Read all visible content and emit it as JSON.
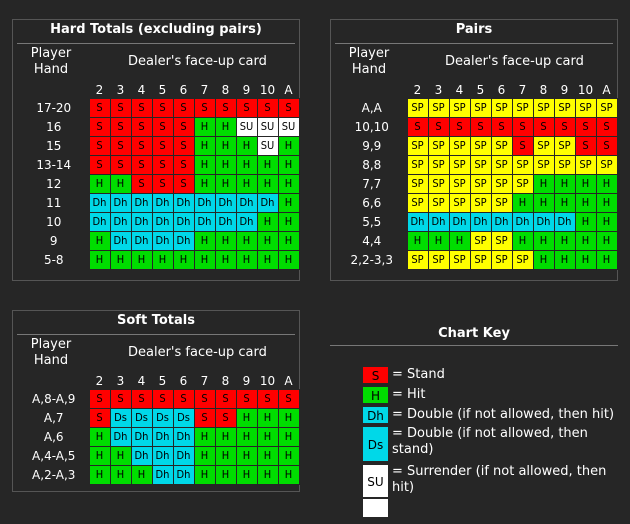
{
  "hard": {
    "title": "Hard Totals (excluding pairs)",
    "player_hand": "Player\nHand",
    "dealer": "Dealer's face-up card",
    "columns": [
      "2",
      "3",
      "4",
      "5",
      "6",
      "7",
      "8",
      "9",
      "10",
      "A"
    ],
    "rows": [
      {
        "label": "17-20",
        "cells": [
          "S",
          "S",
          "S",
          "S",
          "S",
          "S",
          "S",
          "S",
          "S",
          "S"
        ]
      },
      {
        "label": "16",
        "cells": [
          "S",
          "S",
          "S",
          "S",
          "S",
          "H",
          "H",
          "SU",
          "SU",
          "SU"
        ]
      },
      {
        "label": "15",
        "cells": [
          "S",
          "S",
          "S",
          "S",
          "S",
          "H",
          "H",
          "H",
          "SU",
          "H"
        ]
      },
      {
        "label": "13-14",
        "cells": [
          "S",
          "S",
          "S",
          "S",
          "S",
          "H",
          "H",
          "H",
          "H",
          "H"
        ]
      },
      {
        "label": "12",
        "cells": [
          "H",
          "H",
          "S",
          "S",
          "S",
          "H",
          "H",
          "H",
          "H",
          "H"
        ]
      },
      {
        "label": "11",
        "cells": [
          "Dh",
          "Dh",
          "Dh",
          "Dh",
          "Dh",
          "Dh",
          "Dh",
          "Dh",
          "Dh",
          "H"
        ]
      },
      {
        "label": "10",
        "cells": [
          "Dh",
          "Dh",
          "Dh",
          "Dh",
          "Dh",
          "Dh",
          "Dh",
          "Dh",
          "H",
          "H"
        ]
      },
      {
        "label": "9",
        "cells": [
          "H",
          "Dh",
          "Dh",
          "Dh",
          "Dh",
          "H",
          "H",
          "H",
          "H",
          "H"
        ]
      },
      {
        "label": "5-8",
        "cells": [
          "H",
          "H",
          "H",
          "H",
          "H",
          "H",
          "H",
          "H",
          "H",
          "H"
        ]
      }
    ]
  },
  "pairs": {
    "title": "Pairs",
    "player_hand": "Player\nHand",
    "dealer": "Dealer's face-up card",
    "columns": [
      "2",
      "3",
      "4",
      "5",
      "6",
      "7",
      "8",
      "9",
      "10",
      "A"
    ],
    "rows": [
      {
        "label": "A,A",
        "cells": [
          "SP",
          "SP",
          "SP",
          "SP",
          "SP",
          "SP",
          "SP",
          "SP",
          "SP",
          "SP"
        ]
      },
      {
        "label": "10,10",
        "cells": [
          "S",
          "S",
          "S",
          "S",
          "S",
          "S",
          "S",
          "S",
          "S",
          "S"
        ]
      },
      {
        "label": "9,9",
        "cells": [
          "SP",
          "SP",
          "SP",
          "SP",
          "SP",
          "S",
          "SP",
          "SP",
          "S",
          "S"
        ]
      },
      {
        "label": "8,8",
        "cells": [
          "SP",
          "SP",
          "SP",
          "SP",
          "SP",
          "SP",
          "SP",
          "SP",
          "SP",
          "SP"
        ]
      },
      {
        "label": "7,7",
        "cells": [
          "SP",
          "SP",
          "SP",
          "SP",
          "SP",
          "SP",
          "H",
          "H",
          "H",
          "H"
        ]
      },
      {
        "label": "6,6",
        "cells": [
          "SP",
          "SP",
          "SP",
          "SP",
          "SP",
          "H",
          "H",
          "H",
          "H",
          "H"
        ]
      },
      {
        "label": "5,5",
        "cells": [
          "Dh",
          "Dh",
          "Dh",
          "Dh",
          "Dh",
          "Dh",
          "Dh",
          "Dh",
          "H",
          "H"
        ]
      },
      {
        "label": "4,4",
        "cells": [
          "H",
          "H",
          "H",
          "SP",
          "SP",
          "H",
          "H",
          "H",
          "H",
          "H"
        ]
      },
      {
        "label": "2,2-3,3",
        "cells": [
          "SP",
          "SP",
          "SP",
          "SP",
          "SP",
          "SP",
          "H",
          "H",
          "H",
          "H"
        ]
      }
    ]
  },
  "soft": {
    "title": "Soft Totals",
    "player_hand": "Player\nHand",
    "dealer": "Dealer's face-up card",
    "columns": [
      "2",
      "3",
      "4",
      "5",
      "6",
      "7",
      "8",
      "9",
      "10",
      "A"
    ],
    "rows": [
      {
        "label": "A,8-A,9",
        "cells": [
          "S",
          "S",
          "S",
          "S",
          "S",
          "S",
          "S",
          "S",
          "S",
          "S"
        ]
      },
      {
        "label": "A,7",
        "cells": [
          "S",
          "Ds",
          "Ds",
          "Ds",
          "Ds",
          "S",
          "S",
          "H",
          "H",
          "H"
        ]
      },
      {
        "label": "A,6",
        "cells": [
          "H",
          "Dh",
          "Dh",
          "Dh",
          "Dh",
          "H",
          "H",
          "H",
          "H",
          "H"
        ]
      },
      {
        "label": "A,4-A,5",
        "cells": [
          "H",
          "H",
          "Dh",
          "Dh",
          "Dh",
          "H",
          "H",
          "H",
          "H",
          "H"
        ]
      },
      {
        "label": "A,2-A,3",
        "cells": [
          "H",
          "H",
          "H",
          "Dh",
          "Dh",
          "H",
          "H",
          "H",
          "H",
          "H"
        ]
      }
    ]
  },
  "key": {
    "title": "Chart Key",
    "items": [
      {
        "code": "S",
        "swatch": "S",
        "text": "= Stand"
      },
      {
        "code": "H",
        "swatch": "H",
        "text": "= Hit"
      },
      {
        "code": "Dh",
        "swatch": "Dh",
        "text": "= Double (if not allowed, then hit)"
      },
      {
        "code": "Ds",
        "swatch": "Ds",
        "text": "= Double (if not allowed, then stand)"
      },
      {
        "code": "SU",
        "swatch": "SU",
        "text": "= Surrender (if not allowed, then hit)"
      },
      {
        "code": "",
        "swatch": "SU",
        "text": ""
      }
    ]
  },
  "colors": {
    "stand": "#ff0000",
    "hit": "#00dd00",
    "double": "#00d8e8",
    "surrender": "#ffffff",
    "split": "#ffff00",
    "background": "#262626"
  }
}
